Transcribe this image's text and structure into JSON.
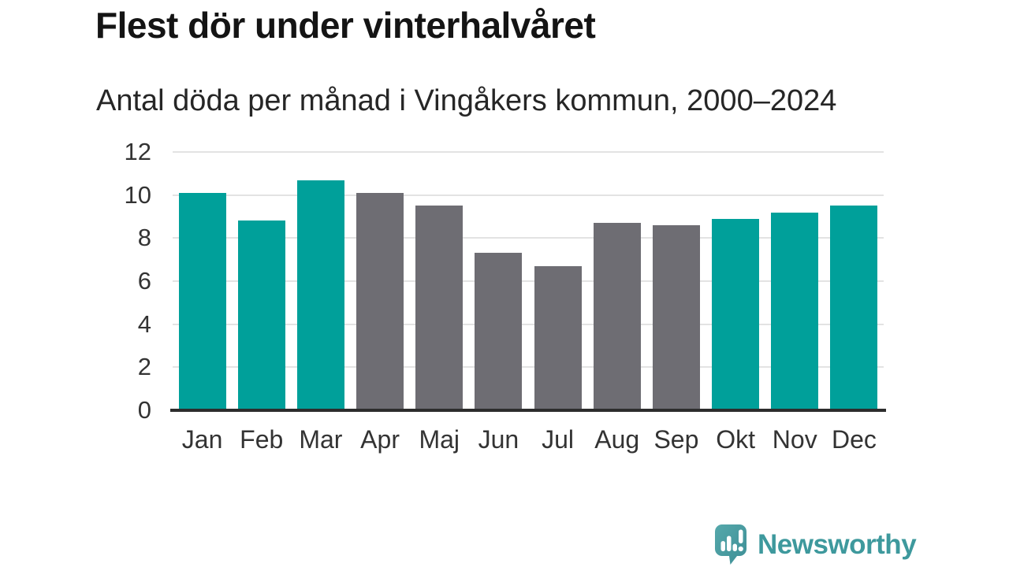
{
  "title": "Flest dör under vinterhalvåret",
  "subtitle": "Antal döda per månad i Vingåkers kommun, 2000–2024",
  "chart_data": {
    "type": "bar",
    "categories": [
      "Jan",
      "Feb",
      "Mar",
      "Apr",
      "Maj",
      "Jun",
      "Jul",
      "Aug",
      "Sep",
      "Okt",
      "Nov",
      "Dec"
    ],
    "values": [
      10.1,
      8.8,
      10.7,
      10.1,
      9.5,
      7.3,
      6.7,
      8.7,
      8.6,
      8.9,
      9.2,
      9.5
    ],
    "bar_color_keys": [
      "winter",
      "winter",
      "winter",
      "summer",
      "summer",
      "summer",
      "summer",
      "summer",
      "summer",
      "winter",
      "winter",
      "winter"
    ],
    "title": "Flest dör under vinterhalvåret",
    "subtitle": "Antal döda per månad i Vingåkers kommun, 2000–2024",
    "xlabel": "",
    "ylabel": "",
    "ylim": [
      0,
      12
    ],
    "yticks": [
      0,
      2,
      4,
      6,
      8,
      10,
      12
    ],
    "grid": true,
    "legend": false
  },
  "colors": {
    "winter": "#00A09A",
    "summer": "#6E6D73",
    "grid": "#E3E3E3",
    "axis": "#2D2D2D",
    "title": "#141414",
    "subtitle": "#262626",
    "tick": "#333333"
  },
  "logo": {
    "text": "Newsworthy",
    "text_color": "#3E999D",
    "icon_color_top": "#55A8AB",
    "icon_color_bottom": "#3E8F96",
    "icon_name": "newsworthy-chart-bubble-icon"
  }
}
